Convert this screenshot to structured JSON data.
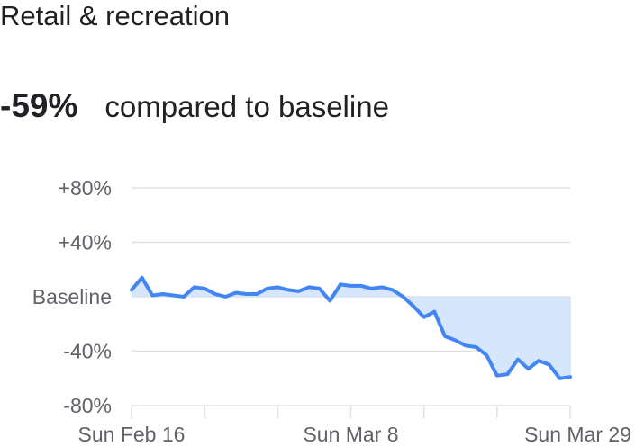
{
  "title": "Retail & recreation",
  "headline": {
    "value": "-59%",
    "caption": "compared to baseline"
  },
  "colors": {
    "line": "#4285f4",
    "fill": "#d2e3fc",
    "grid": "#e0e0e0",
    "text": "#5f6368"
  },
  "chart_data": {
    "type": "area",
    "baseline_fill": true,
    "y_ticks": [
      {
        "label": "+80%",
        "value": 80
      },
      {
        "label": "+40%",
        "value": 40
      },
      {
        "label": "Baseline",
        "value": 0
      },
      {
        "label": "-40%",
        "value": -40
      },
      {
        "label": "-80%",
        "value": -80
      }
    ],
    "ylim": [
      -80,
      80
    ],
    "x_tick_labels": [
      {
        "label": "Sun Feb 16",
        "index": 0
      },
      {
        "label": "Sun Mar 8",
        "index": 21
      },
      {
        "label": "Sun Mar 29",
        "index": 42
      }
    ],
    "x_minor_tick_indices": [
      0,
      7,
      14,
      21,
      28,
      35,
      42
    ],
    "grid": true,
    "series": [
      {
        "values": [
          5,
          14,
          1,
          2,
          1,
          0,
          7,
          6,
          2,
          0,
          3,
          2,
          2,
          6,
          7,
          5,
          4,
          7,
          6,
          -3,
          9,
          8,
          8,
          6,
          7,
          5,
          0,
          -7,
          -15,
          -11,
          -29,
          -32,
          -36,
          -37,
          -43,
          -58,
          -57,
          -46,
          -53,
          -47,
          -50,
          -60,
          -59
        ]
      }
    ]
  }
}
